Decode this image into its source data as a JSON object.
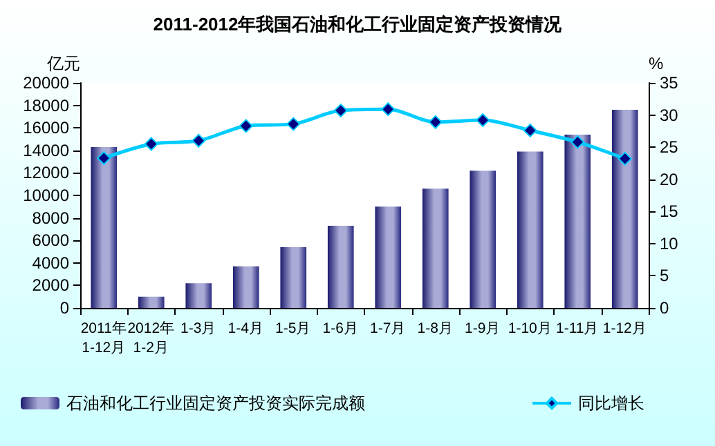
{
  "chart_data": {
    "type": "bar",
    "title": "2011-2012年我国石油和化工行业固定资产投资情况",
    "categories": [
      "2011年\n1-12月",
      "2012年\n1-2月",
      "1-3月",
      "1-4月",
      "1-5月",
      "1-6月",
      "1-7月",
      "1-8月",
      "1-9月",
      "1-10月",
      "1-11月",
      "1-12月"
    ],
    "series": [
      {
        "name": "石油和化工行业固定资产投资实际完成额",
        "color": "#a9aad6",
        "values": [
          14300,
          1000,
          2200,
          3700,
          5400,
          7300,
          9000,
          10600,
          12200,
          13900,
          15400,
          17600
        ]
      },
      {
        "name": "同比增长",
        "type": "line",
        "axis": "y2",
        "color": "#00ccff",
        "marker": "diamond",
        "values": [
          23.3,
          25.5,
          26.0,
          28.3,
          28.6,
          30.7,
          30.9,
          28.9,
          29.2,
          27.6,
          25.8,
          23.2
        ]
      }
    ],
    "ylabel": "亿元",
    "y2label": "%",
    "ylim": [
      0,
      20000
    ],
    "yticks": [
      0,
      2000,
      4000,
      6000,
      8000,
      10000,
      12000,
      14000,
      16000,
      18000,
      20000
    ],
    "y2lim": [
      0,
      35
    ],
    "y2ticks": [
      0,
      5,
      10,
      15,
      20,
      25,
      30,
      35
    ],
    "grid": false,
    "legend": "bottom"
  }
}
